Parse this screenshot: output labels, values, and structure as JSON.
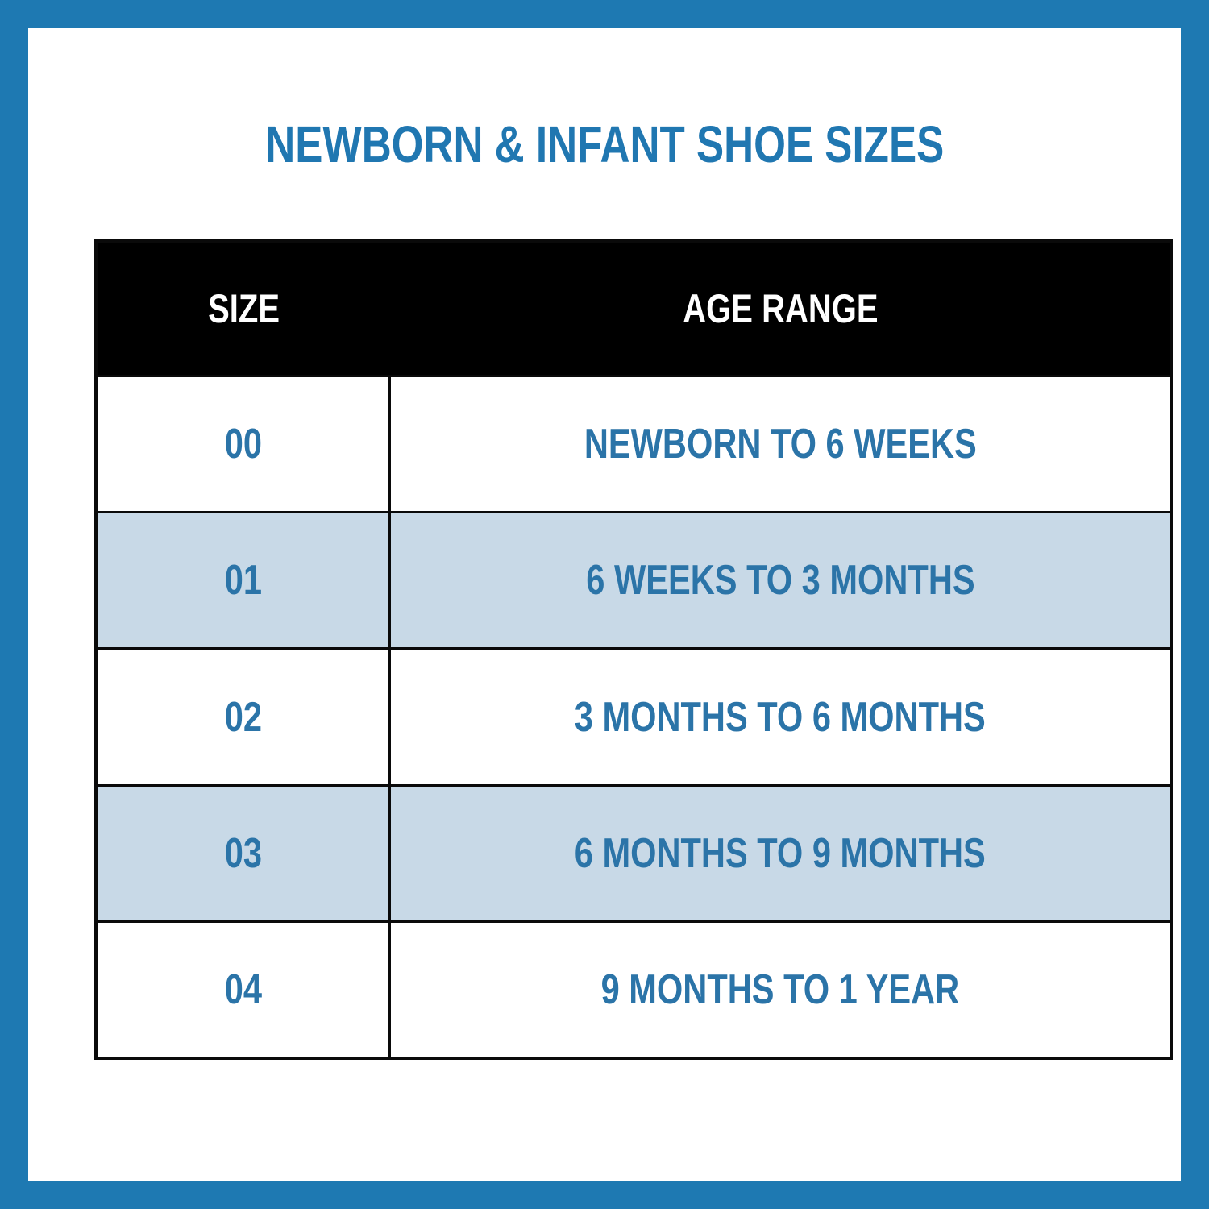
{
  "title": "NEWBORN & INFANT SHOE SIZES",
  "colors": {
    "frame_blue": "#1E79B2",
    "title_blue": "#2077B1",
    "cell_blue": "#2B74A8",
    "row_alt_bg": "#C8D9E7",
    "row_bg": "#FFFFFF",
    "header_bg": "#000000",
    "header_text": "#FFFFFF",
    "line": "#0A0A0A"
  },
  "table": {
    "header": {
      "size": "SIZE",
      "age": "AGE RANGE"
    },
    "rows": [
      {
        "size": "00",
        "age": "NEWBORN TO 6 WEEKS"
      },
      {
        "size": "01",
        "age": "6 WEEKS TO 3 MONTHS"
      },
      {
        "size": "02",
        "age": "3 MONTHS TO 6 MONTHS"
      },
      {
        "size": "03",
        "age": "6 MONTHS TO 9 MONTHS"
      },
      {
        "size": "04",
        "age": "9 MONTHS TO 1 YEAR"
      }
    ]
  },
  "chart_data": {
    "type": "table",
    "title": "NEWBORN & INFANT SHOE SIZES",
    "columns": [
      "SIZE",
      "AGE RANGE"
    ],
    "rows": [
      [
        "00",
        "NEWBORN TO 6 WEEKS"
      ],
      [
        "01",
        "6 WEEKS TO 3 MONTHS"
      ],
      [
        "02",
        "3 MONTHS TO 6 MONTHS"
      ],
      [
        "03",
        "6 MONTHS TO 9 MONTHS"
      ],
      [
        "04",
        "9 MONTHS TO 1 YEAR"
      ]
    ],
    "layout": {
      "header_style": "black background, white bold text",
      "row_striping": "white / light blue alternating, starting white",
      "text_color": "blue",
      "frame": "blue border around entire image"
    }
  }
}
